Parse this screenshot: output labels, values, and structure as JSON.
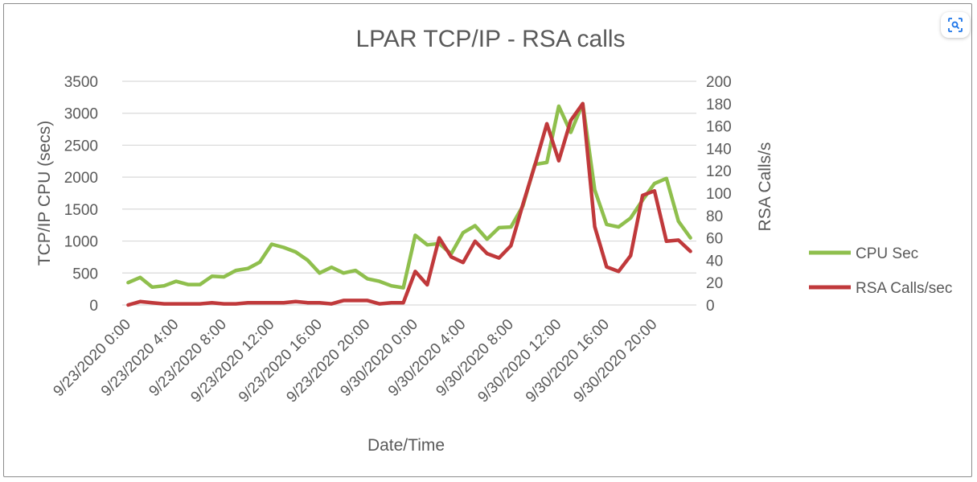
{
  "chart_data": {
    "type": "line",
    "title": "LPAR TCP/IP - RSA calls",
    "xlabel": "Date/Time",
    "ylabel": "TCP/IP CPU (secs)",
    "y2label": "RSA Calls/s",
    "ylim": [
      0,
      3500
    ],
    "y2lim": [
      0,
      200
    ],
    "yticks": [
      "0",
      "500",
      "1000",
      "1500",
      "2000",
      "2500",
      "3000",
      "3500"
    ],
    "y2ticks": [
      "0",
      "20",
      "40",
      "60",
      "80",
      "100",
      "120",
      "140",
      "160",
      "180",
      "200"
    ],
    "x_ticks": [
      "9/23/2020 0:00",
      "9/23/2020 4:00",
      "9/23/2020 8:00",
      "9/23/2020 12:00",
      "9/23/2020 16:00",
      "9/23/2020 20:00",
      "9/30/2020 0:00",
      "9/30/2020 4:00",
      "9/30/2020 8:00",
      "9/30/2020 12:00",
      "9/30/2020 16:00",
      "9/30/2020 20:00"
    ],
    "x": [
      "9/23/2020 0:00",
      "9/23/2020 1:00",
      "9/23/2020 2:00",
      "9/23/2020 3:00",
      "9/23/2020 4:00",
      "9/23/2020 5:00",
      "9/23/2020 6:00",
      "9/23/2020 7:00",
      "9/23/2020 8:00",
      "9/23/2020 9:00",
      "9/23/2020 10:00",
      "9/23/2020 11:00",
      "9/23/2020 12:00",
      "9/23/2020 13:00",
      "9/23/2020 14:00",
      "9/23/2020 15:00",
      "9/23/2020 16:00",
      "9/23/2020 17:00",
      "9/23/2020 18:00",
      "9/23/2020 19:00",
      "9/23/2020 20:00",
      "9/23/2020 21:00",
      "9/23/2020 22:00",
      "9/23/2020 23:00",
      "9/30/2020 0:00",
      "9/30/2020 1:00",
      "9/30/2020 2:00",
      "9/30/2020 3:00",
      "9/30/2020 4:00",
      "9/30/2020 5:00",
      "9/30/2020 6:00",
      "9/30/2020 7:00",
      "9/30/2020 8:00",
      "9/30/2020 9:00",
      "9/30/2020 10:00",
      "9/30/2020 11:00",
      "9/30/2020 12:00",
      "9/30/2020 13:00",
      "9/30/2020 14:00",
      "9/30/2020 15:00",
      "9/30/2020 16:00",
      "9/30/2020 17:00",
      "9/30/2020 18:00",
      "9/30/2020 19:00",
      "9/30/2020 20:00",
      "9/30/2020 21:00",
      "9/30/2020 22:00",
      "9/30/2020 23:00"
    ],
    "series": [
      {
        "name": "CPU Sec",
        "axis": "left",
        "color": "#8fbf4d",
        "values": [
          350,
          430,
          280,
          300,
          370,
          320,
          320,
          450,
          440,
          540,
          570,
          670,
          950,
          900,
          830,
          700,
          500,
          590,
          500,
          540,
          410,
          370,
          300,
          270,
          1090,
          940,
          960,
          800,
          1130,
          1240,
          1030,
          1210,
          1220,
          1550,
          2200,
          2230,
          3110,
          2700,
          3150,
          1800,
          1260,
          1220,
          1360,
          1640,
          1900,
          1980,
          1310,
          1050
        ]
      },
      {
        "name": "RSA Calls/sec",
        "axis": "right",
        "color": "#c0393b",
        "values": [
          0,
          3,
          2,
          1,
          1,
          1,
          1,
          2,
          1,
          1,
          2,
          2,
          2,
          2,
          3,
          2,
          2,
          1,
          4,
          4,
          4,
          1,
          2,
          2,
          30,
          18,
          60,
          43,
          38,
          57,
          46,
          42,
          53,
          90,
          125,
          162,
          129,
          165,
          180,
          70,
          34,
          30,
          44,
          98,
          102,
          57,
          58,
          48
        ]
      }
    ],
    "legend": "right",
    "grid": true
  },
  "ui": {
    "lens_icon": "image-search-icon"
  }
}
